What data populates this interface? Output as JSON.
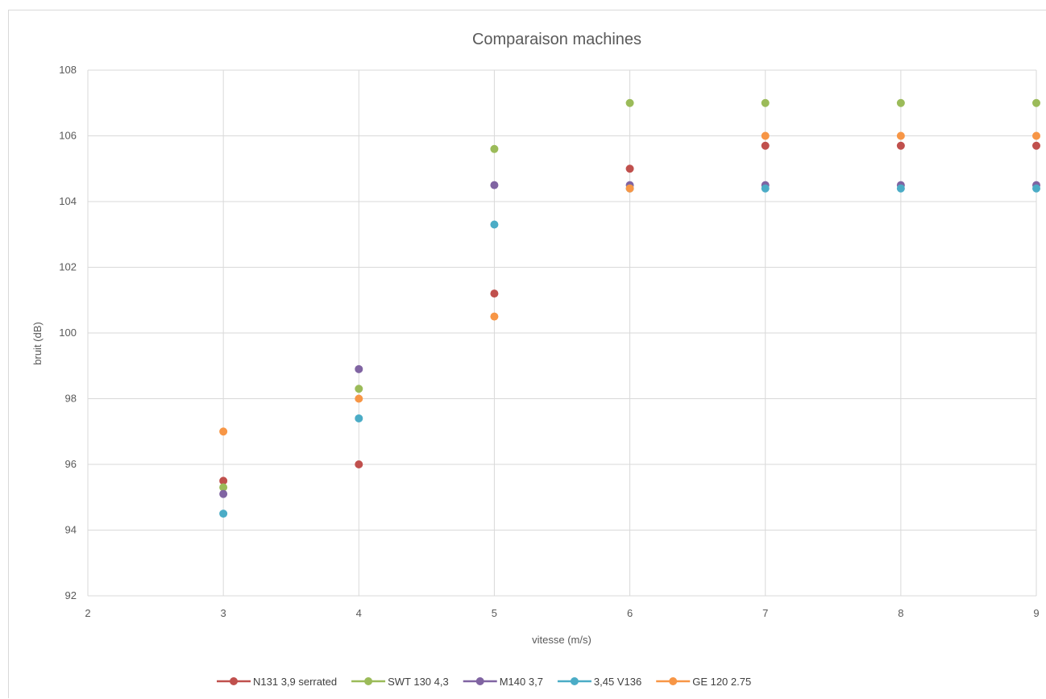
{
  "chart_data": {
    "type": "scatter",
    "title": "Comparaison machines",
    "xlabel": "vitesse (m/s)",
    "ylabel": "bruit (dB)",
    "xlim": [
      2,
      9
    ],
    "ylim": [
      92,
      108
    ],
    "x_ticks": [
      2,
      3,
      4,
      5,
      6,
      7,
      8,
      9
    ],
    "y_ticks": [
      92,
      94,
      96,
      98,
      100,
      102,
      104,
      106,
      108
    ],
    "grid": true,
    "legend_position": "bottom",
    "series": [
      {
        "name": "N131 3,9 serrated",
        "color": "#c0504d",
        "x": [
          3,
          4,
          5,
          6,
          7,
          8,
          9
        ],
        "y": [
          95.5,
          96.0,
          101.2,
          105.0,
          105.7,
          105.7,
          105.7
        ]
      },
      {
        "name": "SWT 130 4,3",
        "color": "#9bbb59",
        "x": [
          3,
          4,
          5,
          6,
          7,
          8,
          9
        ],
        "y": [
          95.3,
          98.3,
          105.6,
          107.0,
          107.0,
          107.0,
          107.0
        ]
      },
      {
        "name": "M140 3,7",
        "color": "#8064a2",
        "x": [
          3,
          4,
          5,
          6,
          7,
          8,
          9
        ],
        "y": [
          95.1,
          98.9,
          104.5,
          104.5,
          104.5,
          104.5,
          104.5
        ]
      },
      {
        "name": "3,45 V136",
        "color": "#4bacc6",
        "x": [
          3,
          4,
          5,
          6,
          7,
          8,
          9
        ],
        "y": [
          94.5,
          97.4,
          103.3,
          104.4,
          104.4,
          104.4,
          104.4
        ]
      },
      {
        "name": "GE 120 2.75",
        "color": "#f79646",
        "x": [
          3,
          4,
          5,
          6,
          7,
          8,
          9
        ],
        "y": [
          97.0,
          98.0,
          100.5,
          104.4,
          106.0,
          106.0,
          106.0
        ]
      }
    ]
  }
}
